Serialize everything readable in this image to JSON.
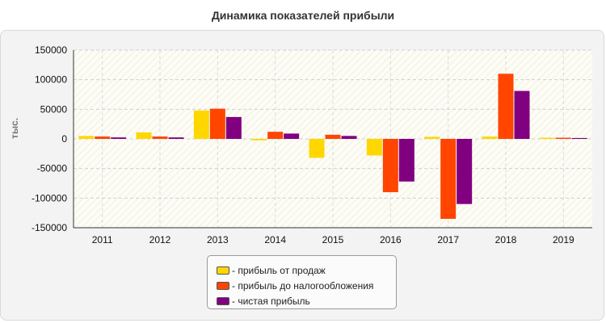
{
  "chart_data": {
    "type": "bar",
    "title": "Динамика показателей прибыли",
    "ylabel": "тыс.",
    "xlabel": "",
    "categories": [
      "2011",
      "2012",
      "2013",
      "2014",
      "2015",
      "2016",
      "2017",
      "2018",
      "2019"
    ],
    "ylim": [
      -150000,
      150000
    ],
    "yticks": [
      150000,
      100000,
      50000,
      0,
      -50000,
      -100000,
      -150000
    ],
    "grid": true,
    "legend_position": "bottom-center",
    "series": [
      {
        "name": "- прибыль от продаж",
        "color": "#FFD700",
        "values": [
          5000,
          11000,
          48000,
          -2500,
          -32000,
          -28000,
          3500,
          4000,
          2000
        ]
      },
      {
        "name": "- прибыль до налогообложения",
        "color": "#FF4500",
        "values": [
          4000,
          4000,
          51000,
          12000,
          7000,
          -90000,
          -135000,
          110000,
          2000
        ]
      },
      {
        "name": "- чистая прибыль",
        "color": "#800080",
        "values": [
          2500,
          2500,
          37000,
          9000,
          5000,
          -72000,
          -110000,
          81000,
          1500
        ]
      }
    ]
  }
}
